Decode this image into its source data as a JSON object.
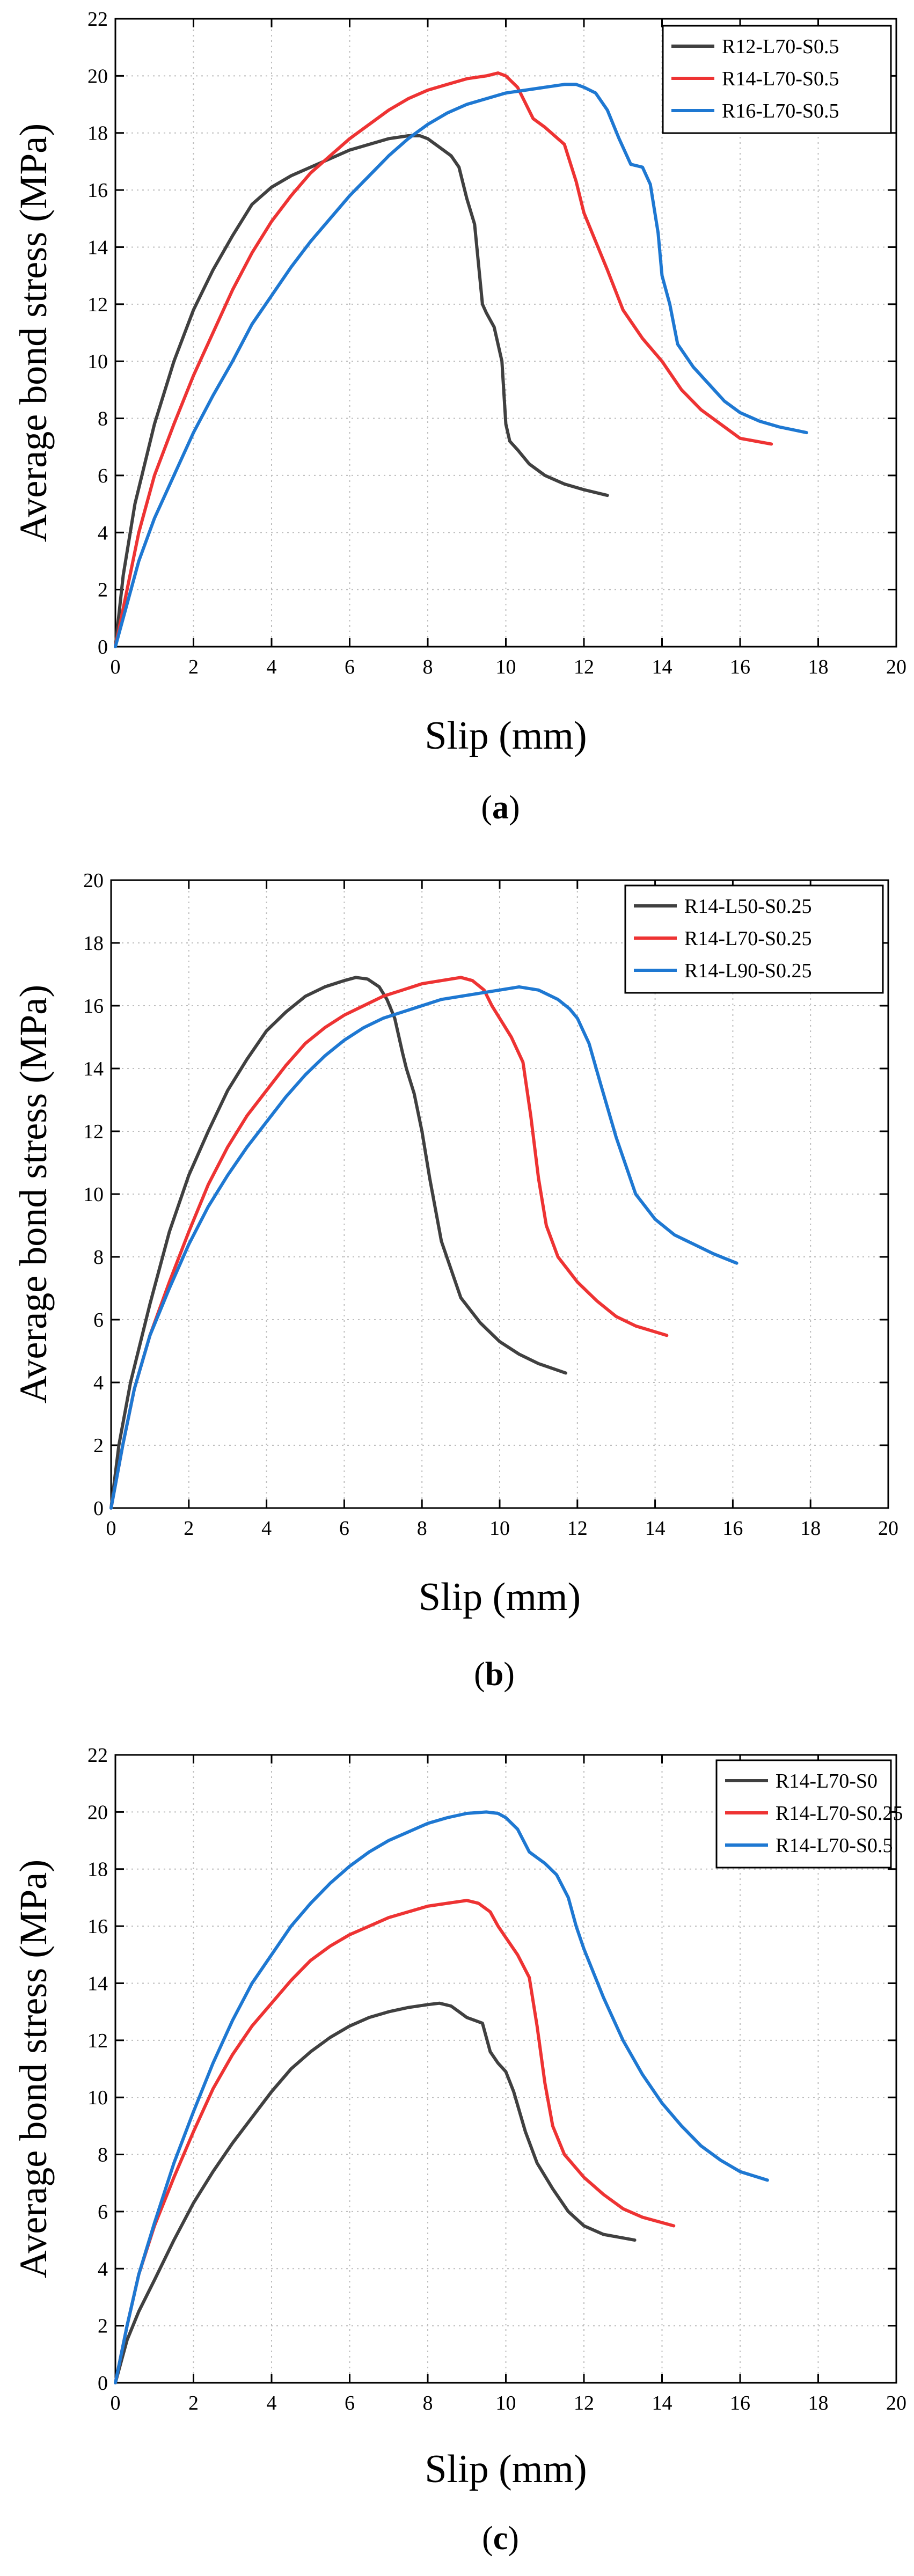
{
  "figure": {
    "panel_labels": [
      "(a)",
      "(b)",
      "(c)"
    ]
  },
  "chart_data": [
    {
      "type": "line",
      "xlabel": "Slip (mm)",
      "ylabel": "Average bond stress (MPa)",
      "xlim": [
        0,
        20
      ],
      "ylim": [
        0,
        22
      ],
      "xticks": [
        0,
        2,
        4,
        6,
        8,
        10,
        12,
        14,
        16,
        18,
        20
      ],
      "yticks": [
        0,
        2,
        4,
        6,
        8,
        10,
        12,
        14,
        16,
        18,
        20,
        22
      ],
      "grid": true,
      "legend_position": "top-right",
      "series": [
        {
          "name": "R12-L70-S0.5",
          "color": "#404040",
          "x": [
            0,
            0.2,
            0.5,
            1.0,
            1.5,
            2.0,
            2.5,
            3.0,
            3.5,
            4.0,
            4.5,
            5.0,
            5.5,
            6.0,
            6.5,
            7.0,
            7.5,
            7.8,
            8.0,
            8.3,
            8.6,
            8.8,
            9.0,
            9.2,
            9.4,
            9.5,
            9.7,
            9.9,
            10.0,
            10.1,
            10.3,
            10.6,
            11.0,
            11.5,
            12.0,
            12.6
          ],
          "y": [
            0,
            2.5,
            5.0,
            7.8,
            10.0,
            11.8,
            13.2,
            14.4,
            15.5,
            16.1,
            16.5,
            16.8,
            17.1,
            17.4,
            17.6,
            17.8,
            17.9,
            17.9,
            17.8,
            17.5,
            17.2,
            16.8,
            15.7,
            14.8,
            12.0,
            11.7,
            11.2,
            10.0,
            7.8,
            7.2,
            6.9,
            6.4,
            6.0,
            5.7,
            5.5,
            5.3
          ]
        },
        {
          "name": "R14-L70-S0.5",
          "color": "#ee3333",
          "x": [
            0,
            0.3,
            0.6,
            1.0,
            1.5,
            2.0,
            2.5,
            3.0,
            3.5,
            4.0,
            4.5,
            5.0,
            5.5,
            6.0,
            6.5,
            7.0,
            7.5,
            8.0,
            8.5,
            9.0,
            9.5,
            9.8,
            10.0,
            10.3,
            10.7,
            11.0,
            11.5,
            11.8,
            12.0,
            12.3,
            12.6,
            13.0,
            13.5,
            14.0,
            14.5,
            15.0,
            15.5,
            16.0,
            16.8
          ],
          "y": [
            0,
            2.0,
            4.0,
            6.0,
            7.8,
            9.5,
            11.0,
            12.5,
            13.8,
            14.9,
            15.8,
            16.6,
            17.2,
            17.8,
            18.3,
            18.8,
            19.2,
            19.5,
            19.7,
            19.9,
            20.0,
            20.1,
            20.0,
            19.6,
            18.5,
            18.2,
            17.6,
            16.3,
            15.2,
            14.2,
            13.2,
            11.8,
            10.8,
            10.0,
            9.0,
            8.3,
            7.8,
            7.3,
            7.1
          ]
        },
        {
          "name": "R16-L70-S0.5",
          "color": "#1e78d2",
          "x": [
            0,
            0.3,
            0.6,
            1.0,
            1.5,
            2.0,
            2.5,
            3.0,
            3.5,
            4.0,
            4.5,
            5.0,
            5.5,
            6.0,
            6.5,
            7.0,
            7.5,
            8.0,
            8.5,
            9.0,
            9.5,
            10.0,
            10.5,
            11.0,
            11.5,
            11.8,
            12.0,
            12.3,
            12.6,
            12.9,
            13.2,
            13.5,
            13.7,
            13.9,
            14.0,
            14.2,
            14.4,
            14.8,
            15.2,
            15.6,
            16.0,
            16.5,
            17.0,
            17.7
          ],
          "y": [
            0,
            1.5,
            3.0,
            4.5,
            6.0,
            7.5,
            8.8,
            10.0,
            11.3,
            12.3,
            13.3,
            14.2,
            15.0,
            15.8,
            16.5,
            17.2,
            17.8,
            18.3,
            18.7,
            19.0,
            19.2,
            19.4,
            19.5,
            19.6,
            19.7,
            19.7,
            19.6,
            19.4,
            18.8,
            17.8,
            16.9,
            16.8,
            16.2,
            14.5,
            13.0,
            12.0,
            10.6,
            9.8,
            9.2,
            8.6,
            8.2,
            7.9,
            7.7,
            7.5
          ]
        }
      ]
    },
    {
      "type": "line",
      "xlabel": "Slip (mm)",
      "ylabel": "Average bond stress (MPa)",
      "xlim": [
        0,
        20
      ],
      "ylim": [
        0,
        20
      ],
      "xticks": [
        0,
        2,
        4,
        6,
        8,
        10,
        12,
        14,
        16,
        18,
        20
      ],
      "yticks": [
        0,
        2,
        4,
        6,
        8,
        10,
        12,
        14,
        16,
        18,
        20
      ],
      "grid": true,
      "legend_position": "top-right",
      "series": [
        {
          "name": "R14-L50-S0.25",
          "color": "#404040",
          "x": [
            0,
            0.2,
            0.5,
            1.0,
            1.5,
            2.0,
            2.5,
            3.0,
            3.5,
            4.0,
            4.5,
            5.0,
            5.5,
            6.0,
            6.3,
            6.6,
            6.9,
            7.1,
            7.3,
            7.5,
            7.6,
            7.8,
            8.0,
            8.2,
            8.5,
            9.0,
            9.5,
            10.0,
            10.5,
            11.0,
            11.7
          ],
          "y": [
            0,
            2.0,
            4.0,
            6.5,
            8.8,
            10.6,
            12.0,
            13.3,
            14.3,
            15.2,
            15.8,
            16.3,
            16.6,
            16.8,
            16.9,
            16.85,
            16.6,
            16.2,
            15.6,
            14.5,
            14.0,
            13.2,
            12.0,
            10.5,
            8.5,
            6.7,
            5.9,
            5.3,
            4.9,
            4.6,
            4.3
          ]
        },
        {
          "name": "R14-L70-S0.25",
          "color": "#ee3333",
          "x": [
            0,
            0.3,
            0.6,
            1.0,
            1.5,
            2.0,
            2.5,
            3.0,
            3.5,
            4.0,
            4.5,
            5.0,
            5.5,
            6.0,
            6.5,
            7.0,
            7.5,
            8.0,
            8.5,
            9.0,
            9.3,
            9.6,
            9.8,
            10.0,
            10.3,
            10.6,
            10.8,
            11.0,
            11.2,
            11.5,
            12.0,
            12.5,
            13.0,
            13.5,
            14.3
          ],
          "y": [
            0,
            2.0,
            3.8,
            5.5,
            7.2,
            8.8,
            10.3,
            11.5,
            12.5,
            13.3,
            14.1,
            14.8,
            15.3,
            15.7,
            16.0,
            16.3,
            16.5,
            16.7,
            16.8,
            16.9,
            16.8,
            16.5,
            16.0,
            15.6,
            15.0,
            14.2,
            12.5,
            10.5,
            9.0,
            8.0,
            7.2,
            6.6,
            6.1,
            5.8,
            5.5
          ]
        },
        {
          "name": "R14-L90-S0.25",
          "color": "#1e78d2",
          "x": [
            0,
            0.3,
            0.6,
            1.0,
            1.5,
            2.0,
            2.5,
            3.0,
            3.5,
            4.0,
            4.5,
            5.0,
            5.5,
            6.0,
            6.5,
            7.0,
            7.5,
            8.0,
            8.5,
            9.0,
            9.5,
            10.0,
            10.5,
            11.0,
            11.5,
            11.8,
            12.0,
            12.3,
            12.6,
            13.0,
            13.5,
            14.0,
            14.5,
            15.0,
            15.5,
            16.1
          ],
          "y": [
            0,
            2.0,
            3.8,
            5.5,
            7.0,
            8.4,
            9.6,
            10.6,
            11.5,
            12.3,
            13.1,
            13.8,
            14.4,
            14.9,
            15.3,
            15.6,
            15.8,
            16.0,
            16.2,
            16.3,
            16.4,
            16.5,
            16.6,
            16.5,
            16.2,
            15.9,
            15.6,
            14.8,
            13.5,
            11.8,
            10.0,
            9.2,
            8.7,
            8.4,
            8.1,
            7.8
          ]
        }
      ]
    },
    {
      "type": "line",
      "xlabel": "Slip (mm)",
      "ylabel": "Average bond stress (MPa)",
      "xlim": [
        0,
        20
      ],
      "ylim": [
        0,
        22
      ],
      "xticks": [
        0,
        2,
        4,
        6,
        8,
        10,
        12,
        14,
        16,
        18,
        20
      ],
      "yticks": [
        0,
        2,
        4,
        6,
        8,
        10,
        12,
        14,
        16,
        18,
        20,
        22
      ],
      "grid": true,
      "legend_position": "top-right",
      "series": [
        {
          "name": "R14-L70-S0",
          "color": "#404040",
          "x": [
            0,
            0.3,
            0.6,
            1.0,
            1.5,
            2.0,
            2.5,
            3.0,
            3.5,
            4.0,
            4.5,
            5.0,
            5.5,
            6.0,
            6.5,
            7.0,
            7.5,
            8.0,
            8.3,
            8.6,
            8.8,
            9.0,
            9.2,
            9.4,
            9.6,
            9.8,
            10.0,
            10.2,
            10.5,
            10.8,
            11.2,
            11.6,
            12.0,
            12.5,
            13.3
          ],
          "y": [
            0,
            1.5,
            2.5,
            3.6,
            5.0,
            6.3,
            7.4,
            8.4,
            9.3,
            10.2,
            11.0,
            11.6,
            12.1,
            12.5,
            12.8,
            13.0,
            13.15,
            13.25,
            13.3,
            13.2,
            13.0,
            12.8,
            12.7,
            12.6,
            11.6,
            11.2,
            10.9,
            10.2,
            8.8,
            7.7,
            6.8,
            6.0,
            5.5,
            5.2,
            5.0
          ]
        },
        {
          "name": "R14-L70-S0.25",
          "color": "#ee3333",
          "x": [
            0,
            0.3,
            0.6,
            1.0,
            1.5,
            2.0,
            2.5,
            3.0,
            3.5,
            4.0,
            4.5,
            5.0,
            5.5,
            6.0,
            6.5,
            7.0,
            7.5,
            8.0,
            8.5,
            9.0,
            9.3,
            9.6,
            9.8,
            10.0,
            10.3,
            10.6,
            10.8,
            11.0,
            11.2,
            11.5,
            12.0,
            12.5,
            13.0,
            13.5,
            14.3
          ],
          "y": [
            0,
            2.0,
            3.8,
            5.5,
            7.2,
            8.8,
            10.3,
            11.5,
            12.5,
            13.3,
            14.1,
            14.8,
            15.3,
            15.7,
            16.0,
            16.3,
            16.5,
            16.7,
            16.8,
            16.9,
            16.8,
            16.5,
            16.0,
            15.6,
            15.0,
            14.2,
            12.5,
            10.5,
            9.0,
            8.0,
            7.2,
            6.6,
            6.1,
            5.8,
            5.5
          ]
        },
        {
          "name": "R14-L70-S0.5",
          "color": "#1e78d2",
          "x": [
            0,
            0.3,
            0.6,
            1.0,
            1.5,
            2.0,
            2.5,
            3.0,
            3.5,
            4.0,
            4.5,
            5.0,
            5.5,
            6.0,
            6.5,
            7.0,
            7.5,
            8.0,
            8.5,
            9.0,
            9.5,
            9.8,
            10.0,
            10.3,
            10.6,
            10.8,
            11.0,
            11.3,
            11.6,
            11.8,
            12.0,
            12.5,
            13.0,
            13.5,
            14.0,
            14.5,
            15.0,
            15.5,
            16.0,
            16.7
          ],
          "y": [
            0,
            2.0,
            3.8,
            5.6,
            7.7,
            9.5,
            11.2,
            12.7,
            14.0,
            15.0,
            16.0,
            16.8,
            17.5,
            18.1,
            18.6,
            19.0,
            19.3,
            19.6,
            19.8,
            19.95,
            20.0,
            19.95,
            19.8,
            19.4,
            18.6,
            18.4,
            18.2,
            17.8,
            17.0,
            16.0,
            15.2,
            13.5,
            12.0,
            10.8,
            9.8,
            9.0,
            8.3,
            7.8,
            7.4,
            7.1
          ]
        }
      ]
    }
  ]
}
